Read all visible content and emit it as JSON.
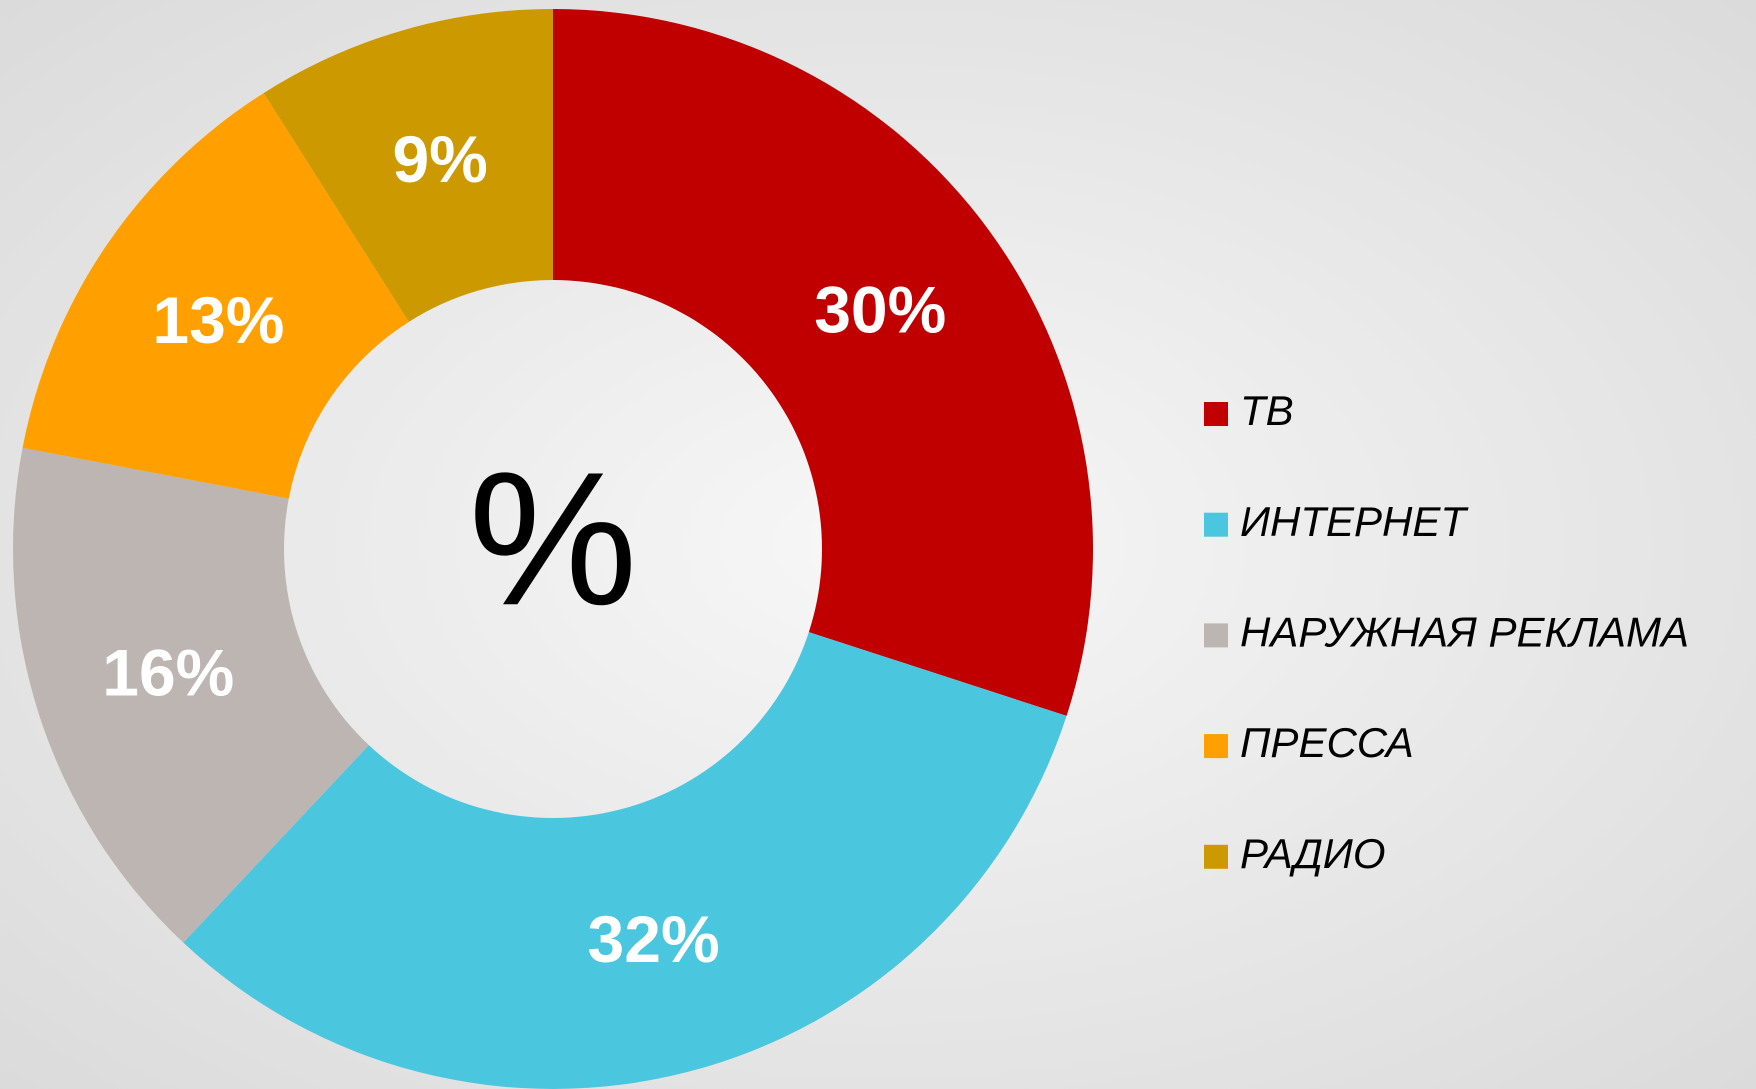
{
  "chart_data": {
    "type": "donut",
    "center_label": "%",
    "categories": [
      "ТВ",
      "ИНТЕРНЕТ",
      "НАРУЖНАЯ РЕКЛАМА",
      "ПРЕССА",
      "РАДИО"
    ],
    "values": [
      30,
      32,
      16,
      13,
      9
    ],
    "value_labels": [
      "30%",
      "32%",
      "16%",
      "13%",
      "9%"
    ],
    "colors": [
      "#c00000",
      "#4bc6df",
      "#bdb5b2",
      "#ff9f00",
      "#cc9a00"
    ],
    "legend": "right"
  }
}
